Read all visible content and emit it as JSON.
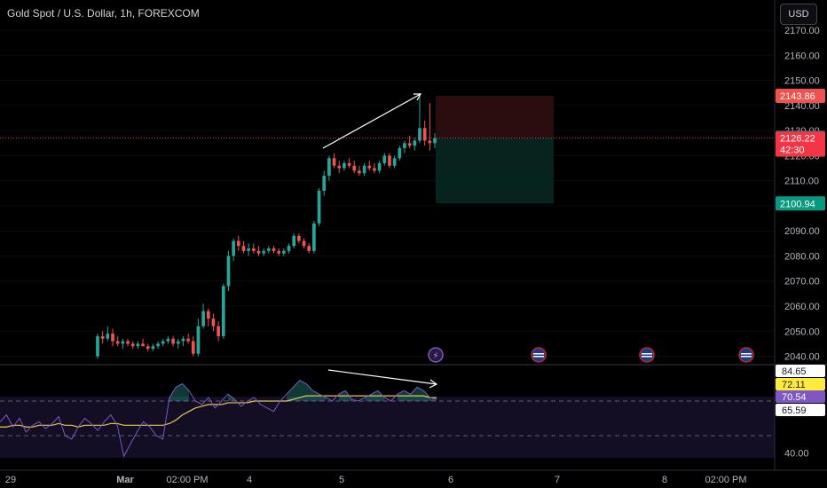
{
  "header": {
    "title": "Gold Spot / U.S. Dollar, 1h, FOREXCOM",
    "currency_button": "USD"
  },
  "chart_data": {
    "type": "candlestick",
    "price_ylim": [
      2037,
      2175
    ],
    "price_ticks": [
      "2040.00",
      "2050.00",
      "2060.00",
      "2070.00",
      "2080.00",
      "2090.00",
      "2100.00",
      "2110.00",
      "2120.00",
      "2130.00",
      "2140.00",
      "2150.00",
      "2160.00",
      "2170.00"
    ],
    "price_tick_values": [
      2040,
      2050,
      2060,
      2070,
      2080,
      2090,
      2100,
      2110,
      2120,
      2130,
      2140,
      2150,
      2160,
      2170
    ],
    "x_labels": [
      "29",
      "Mar",
      "02:00 PM",
      "4",
      "5",
      "6",
      "7",
      "8",
      "02:00 PM"
    ],
    "colors": {
      "up": "#26a69a",
      "down": "#ef5350",
      "rsi": "#7e57c2",
      "rsi_ma": "#e6c84a",
      "current": "#f23645"
    },
    "candles": [
      [
        2040,
        2049,
        2039,
        2048
      ],
      [
        2048,
        2050,
        2045,
        2047
      ],
      [
        2047,
        2052,
        2046,
        2049
      ],
      [
        2049,
        2051,
        2044,
        2046
      ],
      [
        2046,
        2048,
        2044,
        2045
      ],
      [
        2045,
        2047,
        2043,
        2046
      ],
      [
        2046,
        2047,
        2044,
        2045
      ],
      [
        2045,
        2046,
        2043,
        2044
      ],
      [
        2044,
        2046,
        2043,
        2045
      ],
      [
        2045,
        2047,
        2044,
        2044
      ],
      [
        2044,
        2045,
        2042,
        2043
      ],
      [
        2043,
        2045,
        2042,
        2044
      ],
      [
        2044,
        2046,
        2043,
        2045
      ],
      [
        2045,
        2047,
        2044,
        2046
      ],
      [
        2046,
        2048,
        2045,
        2047
      ],
      [
        2047,
        2048,
        2044,
        2045
      ],
      [
        2045,
        2047,
        2043,
        2046
      ],
      [
        2046,
        2048,
        2044,
        2047
      ],
      [
        2047,
        2049,
        2045,
        2046
      ],
      [
        2046,
        2048,
        2040,
        2041
      ],
      [
        2041,
        2055,
        2040,
        2052
      ],
      [
        2052,
        2061,
        2051,
        2058
      ],
      [
        2058,
        2059,
        2052,
        2055
      ],
      [
        2055,
        2057,
        2050,
        2052
      ],
      [
        2052,
        2054,
        2046,
        2048
      ],
      [
        2048,
        2069,
        2047,
        2068
      ],
      [
        2068,
        2082,
        2066,
        2080
      ],
      [
        2080,
        2087,
        2078,
        2086
      ],
      [
        2086,
        2088,
        2082,
        2084
      ],
      [
        2084,
        2086,
        2081,
        2082
      ],
      [
        2082,
        2085,
        2080,
        2083
      ],
      [
        2083,
        2085,
        2081,
        2082
      ],
      [
        2082,
        2084,
        2080,
        2081
      ],
      [
        2081,
        2083,
        2080,
        2082
      ],
      [
        2082,
        2084,
        2081,
        2083
      ],
      [
        2083,
        2084,
        2081,
        2082
      ],
      [
        2082,
        2083,
        2080,
        2081
      ],
      [
        2081,
        2083,
        2080,
        2082
      ],
      [
        2082,
        2085,
        2081,
        2084
      ],
      [
        2084,
        2089,
        2083,
        2088
      ],
      [
        2088,
        2089,
        2085,
        2086
      ],
      [
        2086,
        2087,
        2083,
        2084
      ],
      [
        2084,
        2085,
        2081,
        2082
      ],
      [
        2082,
        2094,
        2081,
        2093
      ],
      [
        2093,
        2107,
        2092,
        2106
      ],
      [
        2106,
        2114,
        2104,
        2112
      ],
      [
        2112,
        2120,
        2110,
        2119
      ],
      [
        2119,
        2121,
        2115,
        2116
      ],
      [
        2116,
        2118,
        2113,
        2115
      ],
      [
        2115,
        2118,
        2114,
        2117
      ],
      [
        2117,
        2119,
        2115,
        2116
      ],
      [
        2116,
        2118,
        2113,
        2114
      ],
      [
        2114,
        2116,
        2112,
        2113
      ],
      [
        2113,
        2117,
        2112,
        2116
      ],
      [
        2116,
        2118,
        2114,
        2115
      ],
      [
        2115,
        2117,
        2113,
        2114
      ],
      [
        2114,
        2118,
        2113,
        2117
      ],
      [
        2117,
        2121,
        2116,
        2120
      ],
      [
        2120,
        2121,
        2115,
        2116
      ],
      [
        2116,
        2120,
        2115,
        2119
      ],
      [
        2119,
        2124,
        2118,
        2123
      ],
      [
        2123,
        2126,
        2121,
        2125
      ],
      [
        2125,
        2128,
        2123,
        2124
      ],
      [
        2124,
        2127,
        2122,
        2126
      ],
      [
        2126,
        2145,
        2125,
        2131
      ],
      [
        2131,
        2134,
        2124,
        2126
      ],
      [
        2126,
        2141,
        2122,
        2125
      ],
      [
        2125,
        2129,
        2123,
        2127
      ]
    ],
    "position": {
      "entry": 2127.13,
      "stop": 2143.86,
      "target": 2100.94
    },
    "price_labels": {
      "stop": "2143.86",
      "entry": "2127.13",
      "current": "2126.22",
      "countdown": "42:30",
      "target": "2100.94"
    },
    "rsi_ylim": [
      30,
      90
    ],
    "rsi_tick_labels": [
      "40.00"
    ],
    "rsi_tick_values": [
      40
    ],
    "rsi_guides": [
      70,
      50,
      30
    ],
    "rsi_labels": {
      "ma_upper": "84.65",
      "ma_value": "72.11",
      "rsi_value": "70.54",
      "ma_lower": "65.59"
    },
    "rsi": [
      58,
      62,
      55,
      60,
      52,
      56,
      58,
      54,
      57,
      61,
      50,
      48,
      55,
      60,
      57,
      53,
      58,
      62,
      56,
      38,
      45,
      52,
      58,
      55,
      50,
      48,
      72,
      78,
      80,
      76,
      70,
      68,
      72,
      66,
      70,
      74,
      71,
      67,
      70,
      72,
      68,
      66,
      64,
      70,
      74,
      78,
      82,
      80,
      76,
      74,
      72,
      70,
      74,
      76,
      71,
      70,
      72,
      74,
      76,
      72,
      70,
      74,
      76,
      74,
      78,
      76,
      72,
      71
    ],
    "rsi_ma": [
      55,
      55,
      56,
      56,
      55,
      55,
      56,
      56,
      56,
      57,
      56,
      56,
      55,
      56,
      56,
      56,
      56,
      57,
      57,
      56,
      56,
      56,
      56,
      56,
      56,
      56,
      57,
      59,
      62,
      64,
      66,
      67,
      68,
      68,
      68,
      69,
      69,
      69,
      69,
      70,
      70,
      70,
      70,
      70,
      70,
      71,
      72,
      73,
      73,
      73,
      73,
      73,
      73,
      73,
      73,
      73,
      73,
      73,
      73,
      73,
      73,
      73,
      73,
      73,
      73,
      73,
      72,
      72
    ]
  }
}
